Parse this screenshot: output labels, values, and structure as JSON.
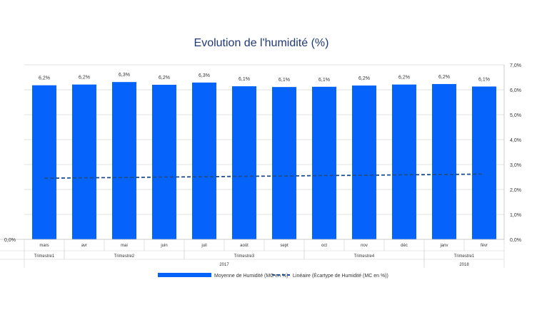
{
  "chart_data": {
    "type": "bar",
    "title": "Evolution de l'humidité (%)",
    "categories": [
      "mars",
      "avr",
      "mai",
      "juin",
      "juil",
      "août",
      "sept",
      "oct",
      "nov",
      "déc",
      "janv",
      "févr"
    ],
    "quarters": [
      {
        "label": "Trimestre1",
        "span": [
          0,
          0
        ]
      },
      {
        "label": "Trimestre2",
        "span": [
          1,
          3
        ]
      },
      {
        "label": "Trimestre3",
        "span": [
          4,
          6
        ]
      },
      {
        "label": "Trimestre4",
        "span": [
          7,
          9
        ]
      },
      {
        "label": "Trimestre1",
        "span": [
          10,
          11
        ]
      }
    ],
    "years": [
      {
        "label": "2017",
        "span": [
          0,
          9
        ]
      },
      {
        "label": "2018",
        "span": [
          10,
          11
        ]
      }
    ],
    "series": [
      {
        "name": "Moyenne de Humidité (MC en %)",
        "values": [
          6.18,
          6.21,
          6.31,
          6.2,
          6.29,
          6.14,
          6.11,
          6.12,
          6.17,
          6.21,
          6.23,
          6.13
        ],
        "data_labels": [
          "6,2%",
          "6,2%",
          "6,3%",
          "6,2%",
          "6,3%",
          "6,1%",
          "6,1%",
          "6,1%",
          "6,2%",
          "6,2%",
          "6,2%",
          "6,1%"
        ],
        "color": "#0563FA"
      },
      {
        "name": "Linéaire  (Écartype de Humidité (MC en %))",
        "type": "trendline",
        "values": [
          2.45,
          2.47,
          2.48,
          2.5,
          2.51,
          2.53,
          2.54,
          2.56,
          2.57,
          2.59,
          2.6,
          2.62
        ],
        "color": "#1F4E8C"
      }
    ],
    "left_axis_label": "0,0%",
    "yticks": [
      "0,0%",
      "1,0%",
      "2,0%",
      "3,0%",
      "4,0%",
      "5,0%",
      "6,0%",
      "7,0%"
    ],
    "ylim": [
      0,
      7
    ],
    "grid": true,
    "legend_position": "bottom",
    "title_color": "#1F3A78"
  }
}
